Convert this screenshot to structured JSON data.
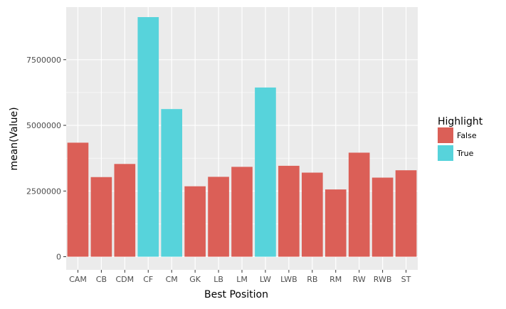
{
  "chart_data": {
    "type": "bar",
    "title": "",
    "xlabel": "Best Position",
    "ylabel": "mean(Value)",
    "categories": [
      "CAM",
      "CB",
      "CDM",
      "CF",
      "CM",
      "GK",
      "LB",
      "LM",
      "LW",
      "LWB",
      "RB",
      "RM",
      "RW",
      "RWB",
      "ST"
    ],
    "values": [
      4340000,
      3030000,
      3530000,
      9120000,
      5620000,
      2680000,
      3040000,
      3420000,
      6440000,
      3460000,
      3200000,
      2560000,
      3960000,
      3010000,
      3290000
    ],
    "highlight": [
      false,
      false,
      false,
      true,
      true,
      false,
      false,
      false,
      true,
      false,
      false,
      false,
      false,
      false,
      false
    ],
    "ylim": [
      -500000,
      9500000
    ],
    "yticks": [
      0,
      2500000,
      5000000,
      7500000
    ],
    "ytick_labels": [
      "0",
      "2500000",
      "5000000",
      "7500000"
    ],
    "grid": true,
    "legend": {
      "title": "Highlight",
      "placement": "right",
      "entries": [
        {
          "label": "False",
          "color": "#DB5F57"
        },
        {
          "label": "True",
          "color": "#57D3DB"
        }
      ]
    },
    "colors": {
      "false": "#DB5F57",
      "true": "#57D3DB",
      "panel": "#EBEBEB",
      "grid": "#FFFFFF",
      "text": "#4D4D4D",
      "title_text": "#000000"
    }
  }
}
